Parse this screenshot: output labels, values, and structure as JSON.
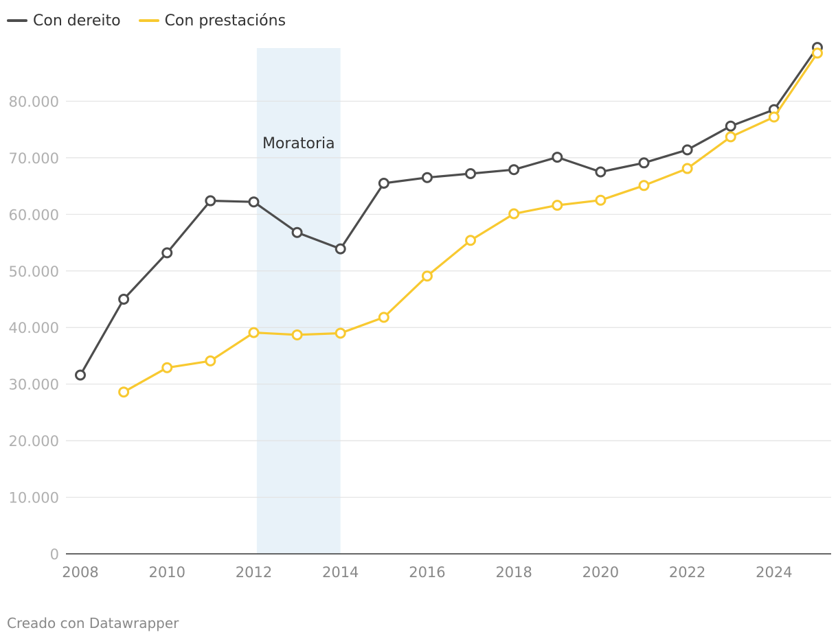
{
  "chart_data": {
    "type": "line",
    "x": [
      2008,
      2009,
      2010,
      2011,
      2012,
      2013,
      2014,
      2015,
      2016,
      2017,
      2018,
      2019,
      2020,
      2021,
      2022,
      2023,
      2024,
      2025
    ],
    "series": [
      {
        "name": "Con dereito",
        "color": "#4d4d4d",
        "values": [
          31600,
          45000,
          53200,
          62400,
          62200,
          56800,
          53900,
          65500,
          66500,
          67200,
          67900,
          70100,
          67500,
          69100,
          71400,
          75600,
          78500,
          89500
        ]
      },
      {
        "name": "Con prestacións",
        "color": "#f8c930",
        "values": [
          null,
          28600,
          32900,
          34100,
          39100,
          38700,
          39000,
          41800,
          49100,
          55400,
          60100,
          61600,
          62500,
          65100,
          68100,
          73700,
          77200,
          88500
        ]
      }
    ],
    "ylim": [
      0,
      90000
    ],
    "yticks": [
      0,
      10000,
      20000,
      30000,
      40000,
      50000,
      60000,
      70000,
      80000
    ],
    "ytick_labels": [
      "0",
      "10.000",
      "20.000",
      "30.000",
      "40.000",
      "50.000",
      "60.000",
      "70.000",
      "80.000"
    ],
    "xticks": [
      2008,
      2010,
      2012,
      2014,
      2016,
      2018,
      2020,
      2022,
      2024
    ],
    "xtick_labels": [
      "2008",
      "2010",
      "2012",
      "2014",
      "2016",
      "2018",
      "2020",
      "2022",
      "2024"
    ],
    "highlight_range": {
      "start": 2012.07,
      "end": 2014,
      "label": "Moratoria",
      "color": "#e8f2f9"
    },
    "grid": true,
    "legend_position": "top-left"
  },
  "legend": [
    {
      "label": "Con dereito",
      "color": "#4d4d4d"
    },
    {
      "label": "Con prestacións",
      "color": "#f8c930"
    }
  ],
  "footer": "Creado con Datawrapper"
}
